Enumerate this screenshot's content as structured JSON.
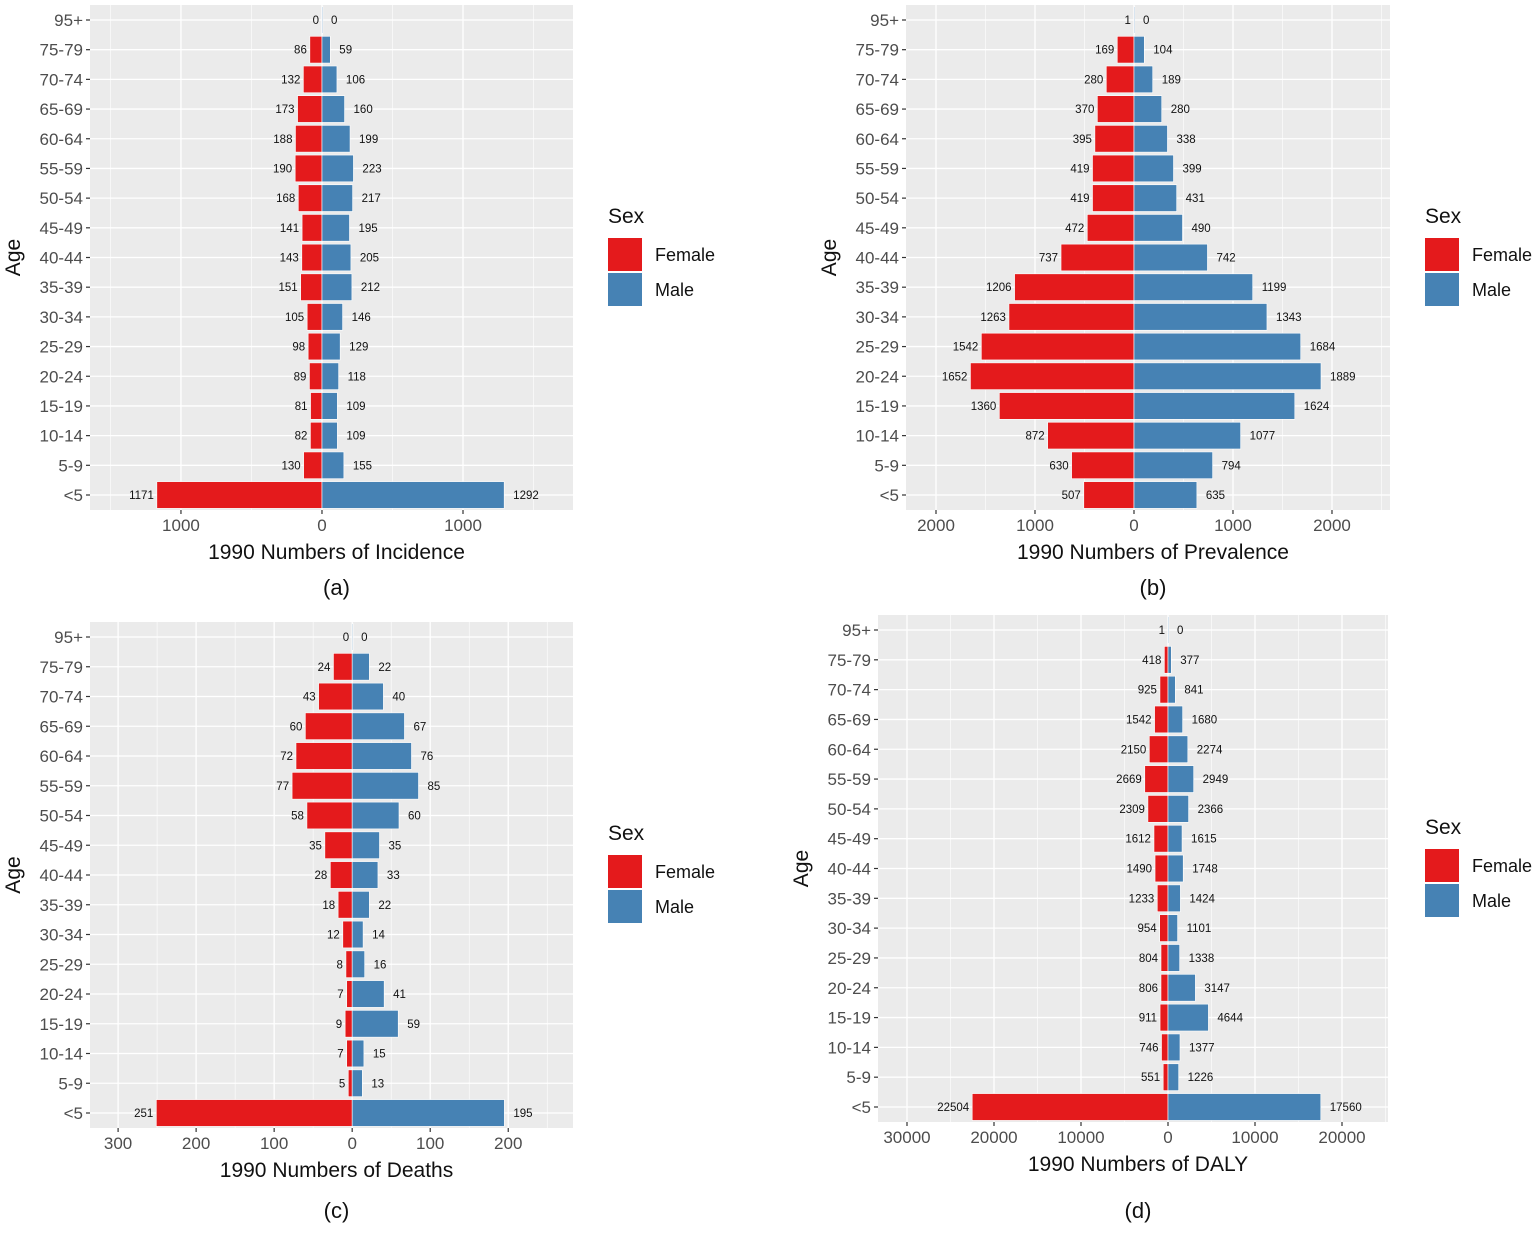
{
  "colors": {
    "female": "#E41A1C",
    "male": "#4682B4",
    "panel_bg": "#EBEBEB",
    "grid": "#FFFFFF"
  },
  "chart_data": [
    {
      "type": "bar",
      "id": "a",
      "caption": "(a)",
      "xlabel": "1990 Numbers of Incidence",
      "ylabel": "Age",
      "legend_title": "Sex",
      "legend": [
        "Female",
        "Male"
      ],
      "legend_placement": "right",
      "categories": [
        "95+",
        "75-79",
        "70-74",
        "65-69",
        "60-64",
        "55-59",
        "50-54",
        "45-49",
        "40-44",
        "35-39",
        "30-34",
        "25-29",
        "20-24",
        "15-19",
        "10-14",
        "5-9",
        "<5"
      ],
      "series": [
        {
          "name": "Female",
          "values": [
            0,
            86,
            132,
            173,
            188,
            190,
            168,
            141,
            143,
            151,
            105,
            98,
            89,
            81,
            82,
            130,
            1171
          ]
        },
        {
          "name": "Male",
          "values": [
            0,
            59,
            106,
            160,
            199,
            223,
            217,
            195,
            205,
            212,
            146,
            129,
            118,
            109,
            109,
            155,
            1292
          ]
        }
      ],
      "xticks": [
        -1000,
        0,
        1000
      ],
      "xtick_labels": [
        "1000",
        "0",
        "1000"
      ],
      "xlim": [
        -1645,
        1780
      ],
      "grid": true
    },
    {
      "type": "bar",
      "id": "b",
      "caption": "(b)",
      "xlabel": "1990 Numbers of Prevalence",
      "ylabel": "Age",
      "legend_title": "Sex",
      "legend": [
        "Female",
        "Male"
      ],
      "legend_placement": "right",
      "categories": [
        "95+",
        "75-79",
        "70-74",
        "65-69",
        "60-64",
        "55-59",
        "50-54",
        "45-49",
        "40-44",
        "35-39",
        "30-34",
        "25-29",
        "20-24",
        "15-19",
        "10-14",
        "5-9",
        "<5"
      ],
      "series": [
        {
          "name": "Female",
          "values": [
            1,
            169,
            280,
            370,
            395,
            419,
            419,
            472,
            737,
            1206,
            1263,
            1542,
            1652,
            1360,
            872,
            630,
            507
          ]
        },
        {
          "name": "Male",
          "values": [
            0,
            104,
            189,
            280,
            338,
            399,
            431,
            490,
            742,
            1199,
            1343,
            1684,
            1889,
            1624,
            1077,
            794,
            635
          ]
        }
      ],
      "xticks": [
        -2000,
        -1000,
        0,
        1000,
        2000
      ],
      "xtick_labels": [
        "2000",
        "1000",
        "0",
        "1000",
        "2000"
      ],
      "xlim": [
        -2303,
        2586
      ],
      "grid": true
    },
    {
      "type": "bar",
      "id": "c",
      "caption": "(c)",
      "xlabel": "1990 Numbers of Deaths",
      "ylabel": "Age",
      "legend_title": "Sex",
      "legend": [
        "Female",
        "Male"
      ],
      "legend_placement": "right",
      "categories": [
        "95+",
        "75-79",
        "70-74",
        "65-69",
        "60-64",
        "55-59",
        "50-54",
        "45-49",
        "40-44",
        "35-39",
        "30-34",
        "25-29",
        "20-24",
        "15-19",
        "10-14",
        "5-9",
        "<5"
      ],
      "series": [
        {
          "name": "Female",
          "values": [
            0,
            24,
            43,
            60,
            72,
            77,
            58,
            35,
            28,
            18,
            12,
            8,
            7,
            9,
            7,
            5,
            251
          ]
        },
        {
          "name": "Male",
          "values": [
            0,
            22,
            40,
            67,
            76,
            85,
            60,
            35,
            33,
            22,
            14,
            16,
            41,
            59,
            15,
            13,
            195
          ]
        }
      ],
      "xticks": [
        -300,
        -200,
        -100,
        0,
        100,
        200
      ],
      "xtick_labels": [
        "300",
        "200",
        "100",
        "0",
        "100",
        "200"
      ],
      "xlim": [
        -336,
        283
      ],
      "grid": true
    },
    {
      "type": "bar",
      "id": "d",
      "caption": "(d)",
      "xlabel": "1990 Numbers of DALY",
      "ylabel": "Age",
      "legend_title": "Sex",
      "legend": [
        "Female",
        "Male"
      ],
      "legend_placement": "right",
      "categories": [
        "95+",
        "75-79",
        "70-74",
        "65-69",
        "60-64",
        "55-59",
        "50-54",
        "45-49",
        "40-44",
        "35-39",
        "30-34",
        "25-29",
        "20-24",
        "15-19",
        "10-14",
        "5-9",
        "<5"
      ],
      "series": [
        {
          "name": "Female",
          "values": [
            1,
            418,
            925,
            1542,
            2150,
            2669,
            2309,
            1612,
            1490,
            1233,
            954,
            804,
            806,
            911,
            746,
            551,
            22504
          ]
        },
        {
          "name": "Male",
          "values": [
            0,
            377,
            841,
            1680,
            2274,
            2949,
            2366,
            1615,
            1748,
            1424,
            1101,
            1338,
            3147,
            4644,
            1377,
            1226,
            17560
          ]
        }
      ],
      "xticks": [
        -30000,
        -20000,
        -10000,
        0,
        10000,
        20000
      ],
      "xtick_labels": [
        "30000",
        "20000",
        "10000",
        "0",
        "10000",
        "20000"
      ],
      "xlim": [
        -33333,
        25287
      ],
      "grid": true
    }
  ]
}
